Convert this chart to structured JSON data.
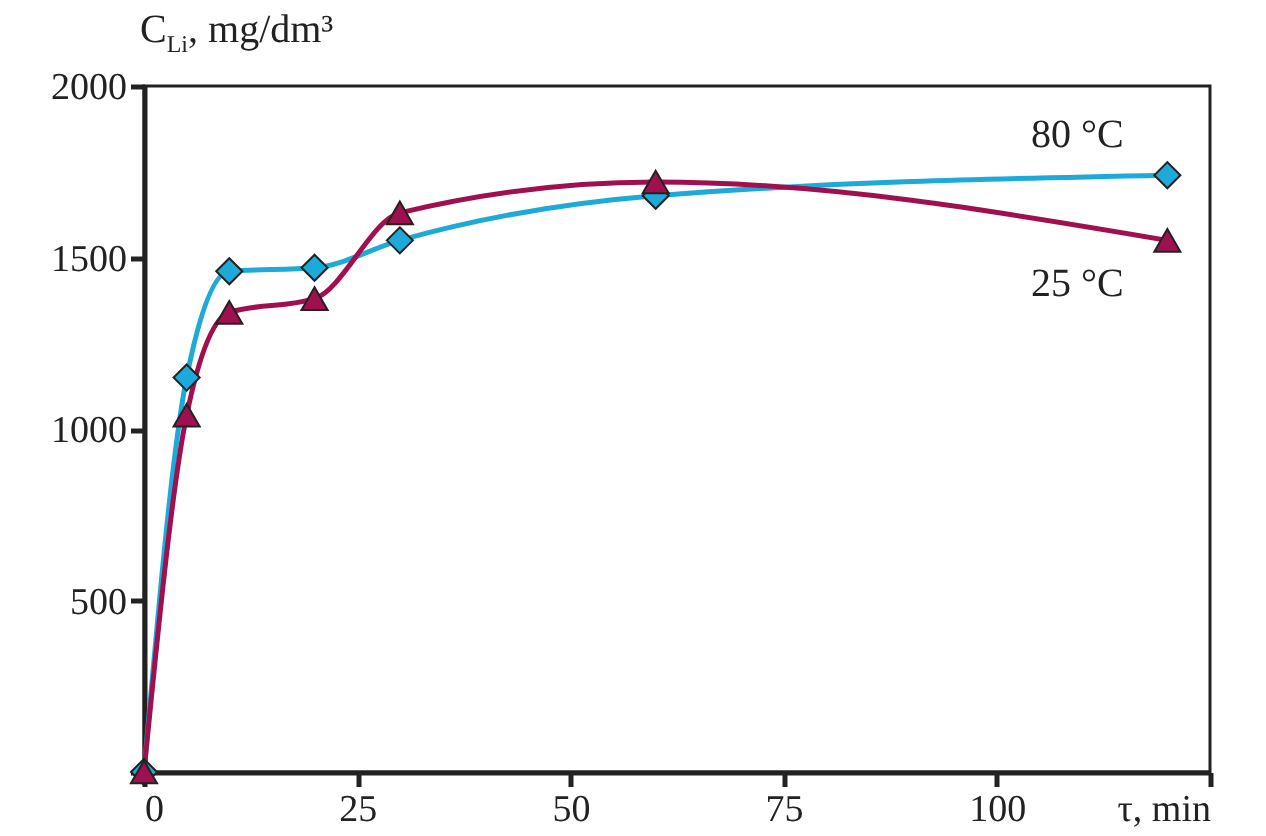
{
  "chart_data": {
    "type": "line",
    "ylabel": "C$_{Li}$, mg/dm³",
    "x": [
      0,
      5,
      10,
      20,
      30,
      60,
      120
    ],
    "series": [
      {
        "name": "80 °C",
        "color": "#1eaad8",
        "marker": "diamond",
        "values": [
          0,
          1150,
          1460,
          1470,
          1550,
          1680,
          1740
        ]
      },
      {
        "name": "25 °C",
        "color": "#a0104f",
        "marker": "triangle",
        "values": [
          0,
          1040,
          1340,
          1380,
          1630,
          1720,
          1550
        ]
      }
    ],
    "xlim": [
      0,
      125
    ],
    "xticks": [
      0,
      25,
      50,
      75,
      100,
      {
        "value": 125,
        "label": "τ, min"
      }
    ],
    "ylim": [
      0,
      2000
    ],
    "yticks": [
      {
        "value": 0,
        "label": null
      },
      500,
      1000,
      1500,
      2000
    ],
    "grid": false
  }
}
